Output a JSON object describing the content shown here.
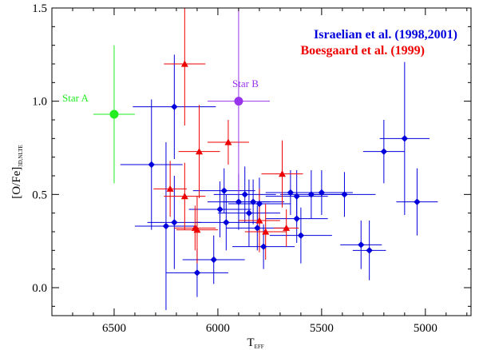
{
  "chart_data": {
    "type": "scatter",
    "title": "",
    "xlabel": "T",
    "xlabel_sub": "EFF",
    "ylabel": "[O/Fe]",
    "ylabel_sub": "3D,NLTE",
    "xlim": [
      6800,
      4780
    ],
    "ylim": [
      -0.15,
      1.5
    ],
    "x_reversed": true,
    "x_ticks": [
      "6500",
      "6000",
      "5500",
      "5000"
    ],
    "y_ticks": [
      "0.0",
      "0.5",
      "1.0",
      "1.5"
    ],
    "grid": false,
    "legend_position": "top-right",
    "series": [
      {
        "name": "Israelian et al. (1998,2001)",
        "color": "#0000dd",
        "marker": "diamond",
        "points": [
          {
            "x": 6320,
            "y": 0.66,
            "xerr": 150,
            "yerr": 0.35
          },
          {
            "x": 6210,
            "y": 0.97,
            "xerr": 200,
            "yerr": 0.28
          },
          {
            "x": 6250,
            "y": 0.33,
            "xerr": 150,
            "yerr": 0.45
          },
          {
            "x": 6210,
            "y": 0.35,
            "xerr": 130,
            "yerr": 0.25
          },
          {
            "x": 6100,
            "y": 0.08,
            "xerr": 150,
            "yerr": 0.13
          },
          {
            "x": 6020,
            "y": 0.15,
            "xerr": 150,
            "yerr": 0.13
          },
          {
            "x": 5990,
            "y": 0.42,
            "xerr": 150,
            "yerr": 0.15
          },
          {
            "x": 5970,
            "y": 0.52,
            "xerr": 150,
            "yerr": 0.12
          },
          {
            "x": 5960,
            "y": 0.35,
            "xerr": 150,
            "yerr": 0.15
          },
          {
            "x": 5900,
            "y": 0.46,
            "xerr": 150,
            "yerr": 0.15
          },
          {
            "x": 5870,
            "y": 0.5,
            "xerr": 150,
            "yerr": 0.15
          },
          {
            "x": 5850,
            "y": 0.4,
            "xerr": 150,
            "yerr": 0.18
          },
          {
            "x": 5830,
            "y": 0.46,
            "xerr": 150,
            "yerr": 0.12
          },
          {
            "x": 5810,
            "y": 0.32,
            "xerr": 150,
            "yerr": 0.12
          },
          {
            "x": 5800,
            "y": 0.45,
            "xerr": 150,
            "yerr": 0.14
          },
          {
            "x": 5780,
            "y": 0.22,
            "xerr": 150,
            "yerr": 0.12
          },
          {
            "x": 5650,
            "y": 0.51,
            "xerr": 120,
            "yerr": 0.12
          },
          {
            "x": 5620,
            "y": 0.37,
            "xerr": 150,
            "yerr": 0.13
          },
          {
            "x": 5620,
            "y": 0.49,
            "xerr": 150,
            "yerr": 0.14
          },
          {
            "x": 5600,
            "y": 0.28,
            "xerr": 150,
            "yerr": 0.15
          },
          {
            "x": 5550,
            "y": 0.5,
            "xerr": 150,
            "yerr": 0.13
          },
          {
            "x": 5500,
            "y": 0.51,
            "xerr": 150,
            "yerr": 0.12
          },
          {
            "x": 5390,
            "y": 0.5,
            "xerr": 150,
            "yerr": 0.12
          },
          {
            "x": 5310,
            "y": 0.23,
            "xerr": 100,
            "yerr": 0.13
          },
          {
            "x": 5270,
            "y": 0.2,
            "xerr": 80,
            "yerr": 0.16
          },
          {
            "x": 5200,
            "y": 0.73,
            "xerr": 100,
            "yerr": 0.17
          },
          {
            "x": 5100,
            "y": 0.8,
            "xerr": 120,
            "yerr": 0.41
          },
          {
            "x": 5040,
            "y": 0.46,
            "xerr": 100,
            "yerr": 0.18
          }
        ]
      },
      {
        "name": "Boesgaard et al. (1999)",
        "color": "#ee0000",
        "marker": "triangle",
        "points": [
          {
            "x": 6160,
            "y": 1.2,
            "xerr": 100,
            "yerr": 0.33
          },
          {
            "x": 6090,
            "y": 0.73,
            "xerr": 100,
            "yerr": 0.25
          },
          {
            "x": 6100,
            "y": 0.31,
            "xerr": 100,
            "yerr": 0.18
          },
          {
            "x": 6110,
            "y": 0.32,
            "xerr": 100,
            "yerr": 0.12
          },
          {
            "x": 6160,
            "y": 0.49,
            "xerr": 100,
            "yerr": 0.18
          },
          {
            "x": 6230,
            "y": 0.53,
            "xerr": 80,
            "yerr": 0.15
          },
          {
            "x": 5950,
            "y": 0.78,
            "xerr": 100,
            "yerr": 0.12
          },
          {
            "x": 5800,
            "y": 0.36,
            "xerr": 100,
            "yerr": 0.17
          },
          {
            "x": 5770,
            "y": 0.3,
            "xerr": 100,
            "yerr": 0.15
          },
          {
            "x": 5690,
            "y": 0.61,
            "xerr": 100,
            "yerr": 0.18
          },
          {
            "x": 5670,
            "y": 0.32,
            "xerr": 60,
            "yerr": 0.1
          }
        ]
      }
    ],
    "annotations": [
      {
        "label": "Star A",
        "x": 6500,
        "y": 0.93,
        "xerr": 100,
        "yerr": 0.37,
        "color": "#22ee22"
      },
      {
        "label": "Star B",
        "x": 5900,
        "y": 1.0,
        "xerr": 150,
        "yerr": 0.5,
        "color": "#9933ee"
      }
    ]
  }
}
